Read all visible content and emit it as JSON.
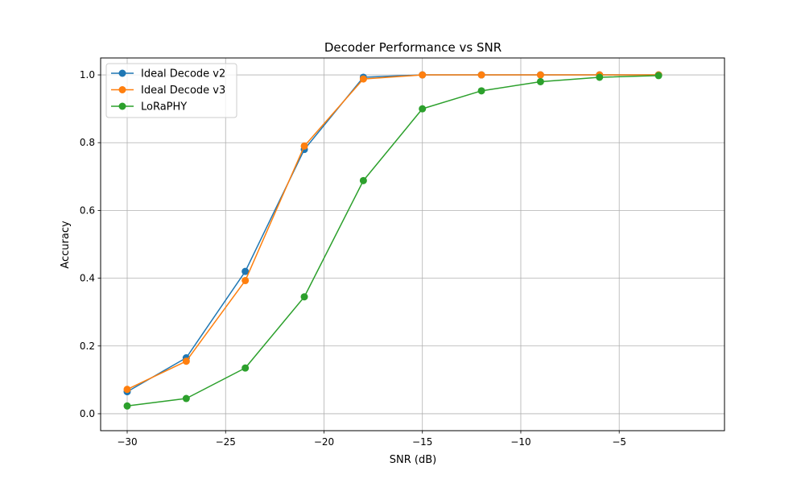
{
  "chart_data": {
    "type": "line",
    "title": "Decoder Performance vs SNR",
    "xlabel": "SNR (dB)",
    "ylabel": "Accuracy",
    "xlim": [
      -31.35,
      0.35
    ],
    "ylim": [
      -0.05,
      1.05
    ],
    "xticks": [
      -30,
      -25,
      -20,
      -15,
      -10,
      -5
    ],
    "xtick_labels": [
      "−30",
      "−25",
      "−20",
      "−15",
      "−10",
      "−5"
    ],
    "yticks": [
      0.0,
      0.2,
      0.4,
      0.6,
      0.8,
      1.0
    ],
    "ytick_labels": [
      "0.0",
      "0.2",
      "0.4",
      "0.6",
      "0.8",
      "1.0"
    ],
    "grid": true,
    "legend_position": "top-left",
    "x": [
      -30,
      -27,
      -24,
      -21,
      -18,
      -15,
      -12,
      -9,
      -6,
      -3
    ],
    "series": [
      {
        "name": "Ideal Decode v2",
        "color": "#1f77b4",
        "values": [
          0.065,
          0.165,
          0.42,
          0.78,
          0.993,
          1.0,
          1.0,
          1.0,
          1.0,
          1.0
        ]
      },
      {
        "name": "Ideal Decode v3",
        "color": "#ff7f0e",
        "values": [
          0.072,
          0.155,
          0.393,
          0.79,
          0.988,
          1.0,
          1.0,
          1.0,
          1.0,
          1.0
        ]
      },
      {
        "name": "LoRaPHY",
        "color": "#2ca02c",
        "values": [
          0.023,
          0.045,
          0.135,
          0.345,
          0.688,
          0.9,
          0.953,
          0.98,
          0.993,
          0.998
        ]
      }
    ]
  }
}
